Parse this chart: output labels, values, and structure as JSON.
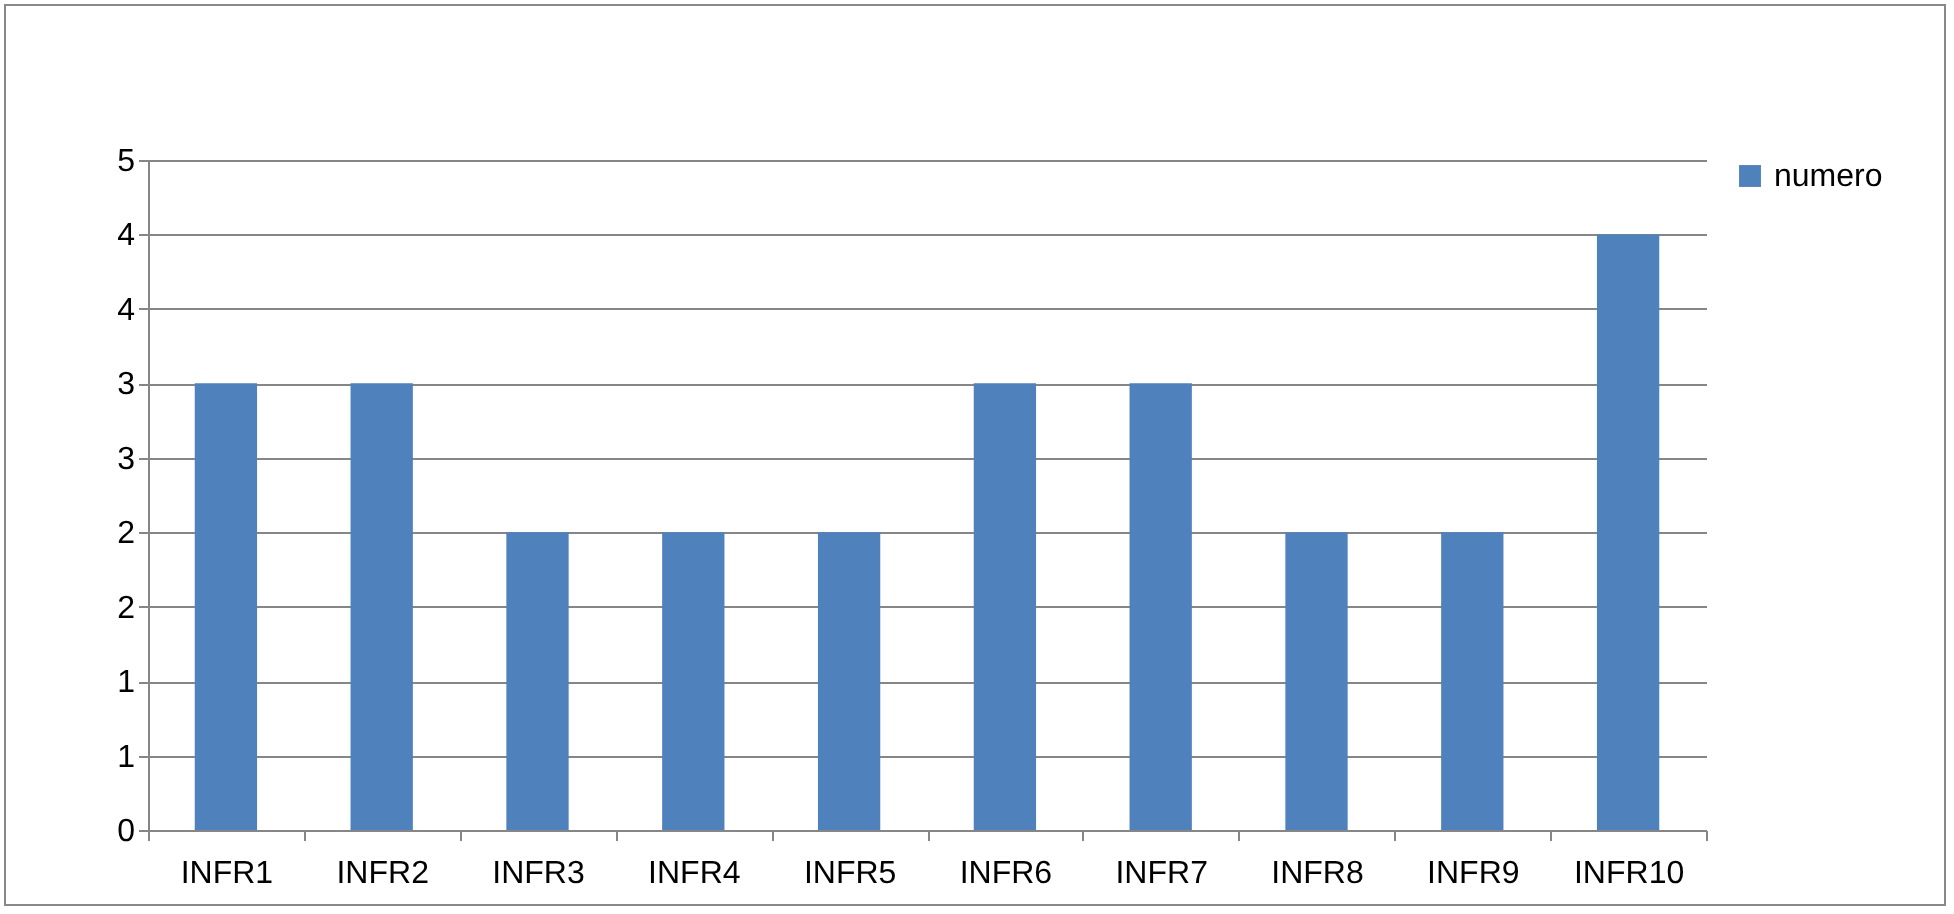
{
  "chart_data": {
    "type": "bar",
    "categories": [
      "INFR1",
      "INFR2",
      "INFR3",
      "INFR4",
      "INFR5",
      "INFR6",
      "INFR7",
      "INFR8",
      "INFR9",
      "INFR10"
    ],
    "series": [
      {
        "name": "numero",
        "color": "#4f81bd",
        "values": [
          3,
          3,
          2,
          2,
          2,
          3,
          3,
          2,
          2,
          4
        ]
      }
    ],
    "ylim": [
      0,
      4.5
    ],
    "yticks": [
      0,
      {
        "value": 0.5,
        "label": "1"
      },
      1,
      {
        "value": 1.5,
        "label": "2"
      },
      2,
      {
        "value": 2.5,
        "label": "3"
      },
      3,
      {
        "value": 3.5,
        "label": "4"
      },
      4,
      {
        "value": 4.5,
        "label": "5"
      }
    ],
    "grid": "y",
    "legend": "right"
  }
}
